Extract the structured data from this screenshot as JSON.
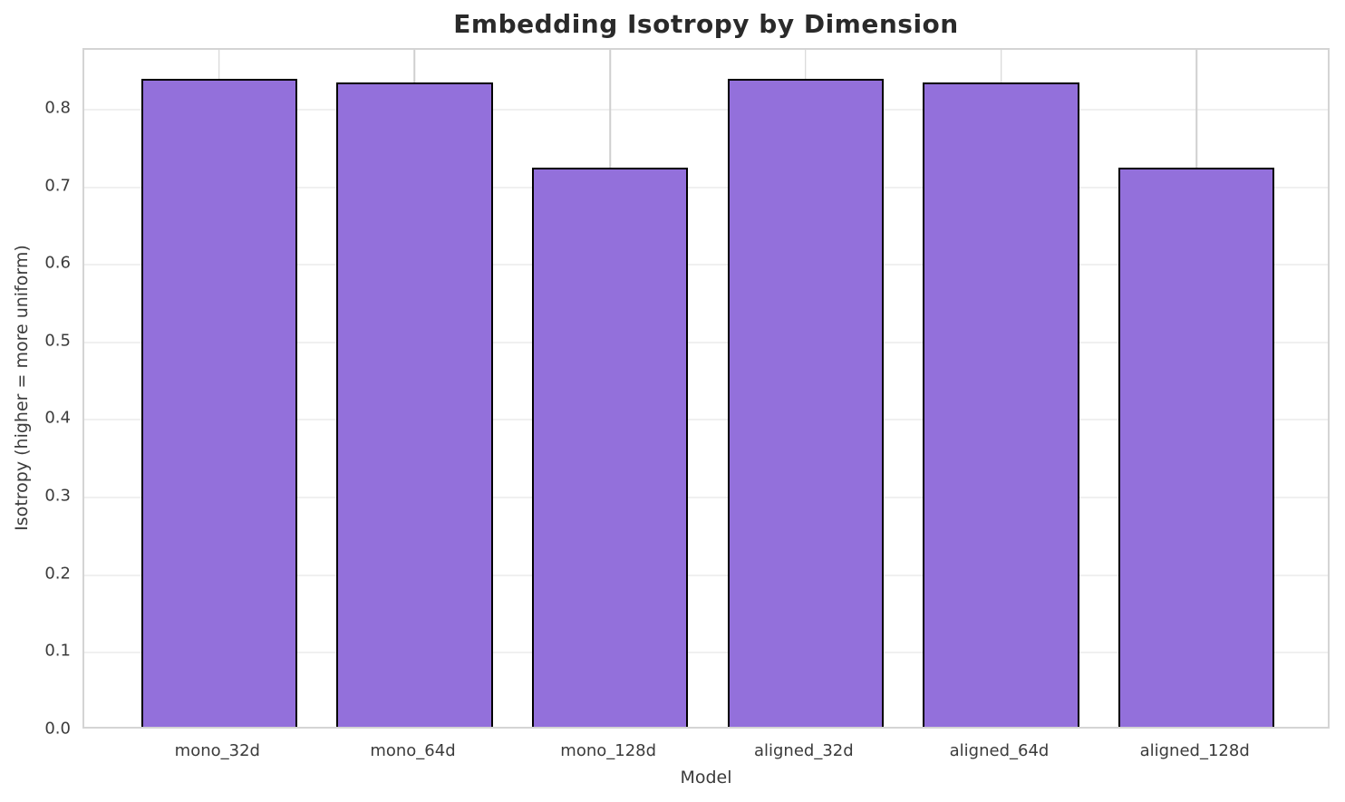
{
  "chart_data": {
    "type": "bar",
    "title": "Embedding Isotropy by Dimension",
    "xlabel": "Model",
    "ylabel": "Isotropy (higher = more uniform)",
    "categories": [
      "mono_32d",
      "mono_64d",
      "mono_128d",
      "aligned_32d",
      "aligned_64d",
      "aligned_128d"
    ],
    "values": [
      0.835,
      0.83,
      0.72,
      0.835,
      0.83,
      0.72
    ],
    "ylim": [
      0,
      0.877
    ],
    "yticks": [
      0.0,
      0.1,
      0.2,
      0.3,
      0.4,
      0.5,
      0.6,
      0.7,
      0.8
    ],
    "ytick_labels": [
      "0.0",
      "0.1",
      "0.2",
      "0.3",
      "0.4",
      "0.5",
      "0.6",
      "0.7",
      "0.8"
    ],
    "grid": true,
    "legend_position": "none",
    "bar_color": "#9370DB",
    "bar_edge_color": "#000000",
    "grid_color_horizontal": "#f0f0f0",
    "grid_color_vertical": "#cfcfcf",
    "spine_color": "#d4d4d4",
    "title_color": "#2a2a2a",
    "tick_color": "#3b3b3b"
  }
}
